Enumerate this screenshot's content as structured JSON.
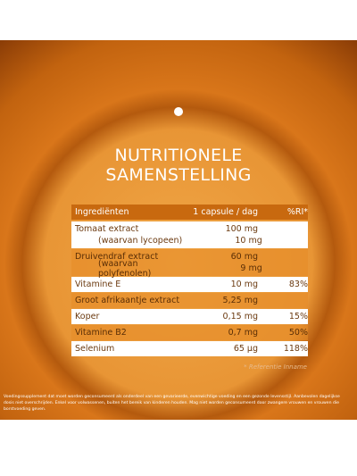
{
  "title": [
    "NUTRITIONELE",
    "SAMENSTELLING"
  ],
  "table": {
    "header": [
      "Ingrediënten",
      "1 capsule / dag",
      "%RI*"
    ],
    "rows": [
      [
        [
          "Tomaat extract",
          "100 mg"
        ],
        [
          "(waarvan lycopeen)",
          "10 mg"
        ]
      ],
      [
        [
          "Druivendraf extract",
          "60 mg"
        ],
        [
          "(waarvan polyfenolen)",
          "9 mg"
        ]
      ],
      [
        [
          "Vitamine E",
          "10 mg",
          "83%"
        ]
      ],
      [
        [
          "Groot afrikaantje extract",
          "5,25 mg"
        ]
      ],
      [
        [
          "Koper",
          "0,15 mg",
          "15%"
        ]
      ],
      [
        [
          "Vitamine B2",
          "0,7 mg",
          "50%"
        ]
      ],
      [
        [
          "Selenium",
          "65 µg",
          "118%"
        ]
      ]
    ]
  },
  "footnote": "* Referentie Inname",
  "disclaimer": "Voedingssupplement dat moet worden geconsumeerd als onderdeel van een gevarieerde, evenwichtige voeding en een gezonde levensstijl. Aanbevolen dagelijkse dosis niet overschrijden. Enkel voor volwassenen, buiten het bereik van kinderen houden. Mag niet worden geconsumeerd door zwangere vrouwen en vrouwen die borstvoeding geven."
}
